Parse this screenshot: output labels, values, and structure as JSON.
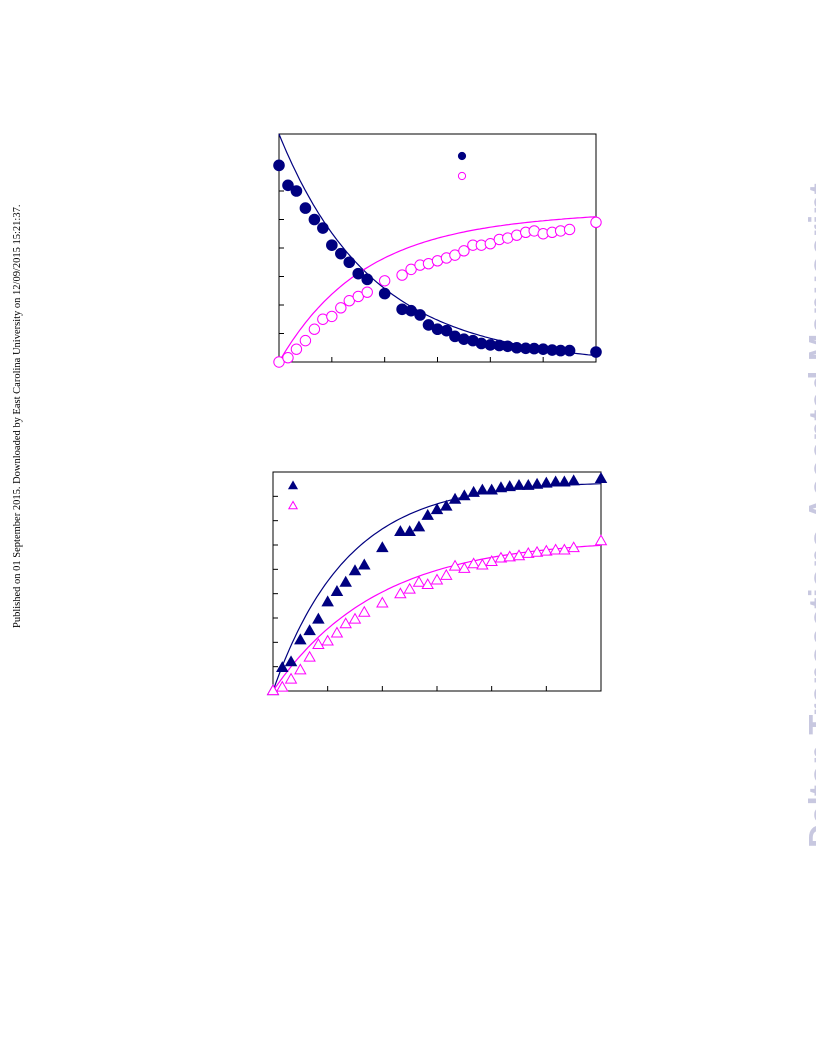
{
  "side_note": "Published on 01 September 2015. Downloaded by East Carolina University on 12/09/2015 15:21:37.",
  "watermark": "Dalton Transactions Accepted Manuscript",
  "colors": {
    "navy": "#000080",
    "magenta": "#ff00ff"
  },
  "chart_data": [
    {
      "type": "scatter",
      "title": "",
      "xlabel": "",
      "ylabel": "",
      "xlim": [
        0,
        6
      ],
      "ylim": [
        0,
        8
      ],
      "grid": false,
      "legend": {
        "placement": "top-center",
        "entries": [
          "",
          ""
        ]
      },
      "series": [
        {
          "name": "",
          "marker": "filled-circle",
          "color": "#000080",
          "x": [
            0.0,
            0.17,
            0.33,
            0.5,
            0.67,
            0.83,
            1.0,
            1.17,
            1.33,
            1.5,
            1.67,
            2.0,
            2.33,
            2.5,
            2.67,
            2.83,
            3.0,
            3.17,
            3.33,
            3.5,
            3.67,
            3.83,
            4.0,
            4.17,
            4.33,
            4.5,
            4.67,
            4.83,
            5.0,
            5.17,
            5.33,
            5.5,
            6.0
          ],
          "y": [
            6.9,
            6.2,
            6.0,
            5.4,
            5.0,
            4.7,
            4.1,
            3.8,
            3.5,
            3.1,
            2.9,
            2.4,
            1.85,
            1.8,
            1.65,
            1.3,
            1.15,
            1.1,
            0.9,
            0.8,
            0.75,
            0.65,
            0.6,
            0.58,
            0.55,
            0.5,
            0.48,
            0.47,
            0.45,
            0.42,
            0.4,
            0.4,
            0.35
          ]
        },
        {
          "name": "",
          "marker": "open-circle",
          "color": "#ff00ff",
          "x": [
            0.0,
            0.17,
            0.33,
            0.5,
            0.67,
            0.83,
            1.0,
            1.17,
            1.33,
            1.5,
            1.67,
            2.0,
            2.33,
            2.5,
            2.67,
            2.83,
            3.0,
            3.17,
            3.33,
            3.5,
            3.67,
            3.83,
            4.0,
            4.17,
            4.33,
            4.5,
            4.67,
            4.83,
            5.0,
            5.17,
            5.33,
            5.5,
            6.0
          ],
          "y": [
            0.0,
            0.15,
            0.45,
            0.75,
            1.15,
            1.5,
            1.6,
            1.9,
            2.15,
            2.3,
            2.45,
            2.85,
            3.05,
            3.25,
            3.4,
            3.45,
            3.55,
            3.65,
            3.75,
            3.9,
            4.1,
            4.1,
            4.15,
            4.3,
            4.35,
            4.45,
            4.55,
            4.6,
            4.5,
            4.55,
            4.6,
            4.65,
            4.9
          ]
        }
      ]
    },
    {
      "type": "scatter",
      "title": "",
      "xlabel": "",
      "ylabel": "",
      "xlim": [
        0,
        6
      ],
      "ylim": [
        0,
        9.5
      ],
      "grid": false,
      "legend": {
        "placement": "top-left",
        "entries": [
          "",
          ""
        ]
      },
      "series": [
        {
          "name": "",
          "marker": "filled-triangle",
          "color": "#000080",
          "x": [
            0.0,
            0.17,
            0.33,
            0.5,
            0.67,
            0.83,
            1.0,
            1.17,
            1.33,
            1.5,
            1.67,
            2.0,
            2.33,
            2.5,
            2.67,
            2.83,
            3.0,
            3.17,
            3.33,
            3.5,
            3.67,
            3.83,
            4.0,
            4.17,
            4.33,
            4.5,
            4.67,
            4.83,
            5.0,
            5.17,
            5.33,
            5.5,
            6.0
          ],
          "y": [
            0.0,
            1.0,
            1.25,
            2.2,
            2.6,
            3.1,
            3.85,
            4.3,
            4.7,
            5.2,
            5.45,
            6.2,
            6.9,
            6.9,
            7.1,
            7.6,
            7.85,
            8.0,
            8.3,
            8.45,
            8.6,
            8.7,
            8.7,
            8.8,
            8.85,
            8.9,
            8.9,
            8.95,
            9.0,
            9.05,
            9.05,
            9.1,
            9.2
          ]
        },
        {
          "name": "",
          "marker": "open-triangle",
          "color": "#ff00ff",
          "x": [
            0.0,
            0.17,
            0.33,
            0.5,
            0.67,
            0.83,
            1.0,
            1.17,
            1.33,
            1.5,
            1.67,
            2.0,
            2.33,
            2.5,
            2.67,
            2.83,
            3.0,
            3.17,
            3.33,
            3.5,
            3.67,
            3.83,
            4.0,
            4.17,
            4.33,
            4.5,
            4.67,
            4.83,
            5.0,
            5.17,
            5.33,
            5.5,
            6.0
          ],
          "y": [
            0.0,
            0.15,
            0.5,
            0.9,
            1.45,
            2.0,
            2.15,
            2.5,
            2.9,
            3.1,
            3.4,
            3.8,
            4.2,
            4.4,
            4.7,
            4.6,
            4.8,
            5.0,
            5.4,
            5.3,
            5.5,
            5.45,
            5.6,
            5.75,
            5.8,
            5.85,
            5.95,
            6.0,
            6.05,
            6.1,
            6.1,
            6.2,
            6.5
          ]
        }
      ]
    }
  ]
}
